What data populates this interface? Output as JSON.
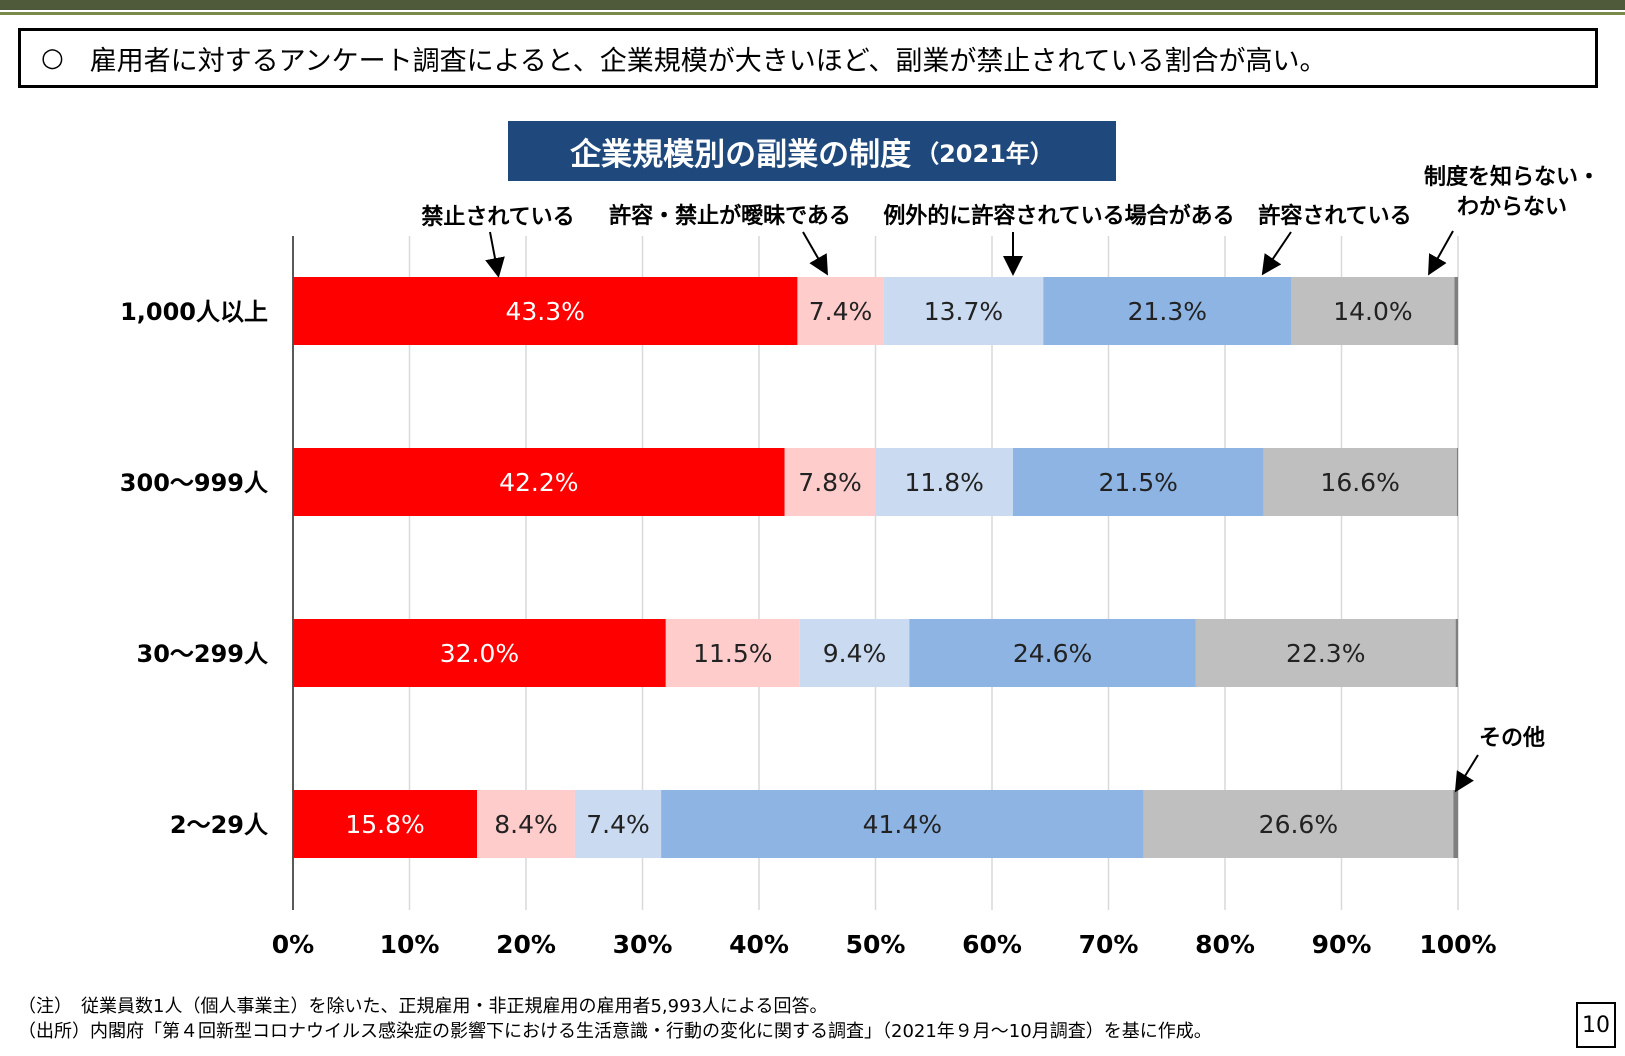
{
  "headline": {
    "marker": "○",
    "text": "雇用者に対するアンケート調査によると、企業規模が大きいほど、副業が禁止されている割合が高い。"
  },
  "chart_data": {
    "type": "bar",
    "orientation": "horizontal",
    "stacked": true,
    "title": "企業規模別の副業の制度",
    "title_suffix": "（2021年）",
    "categories": [
      "1,000人以上",
      "300～999人",
      "30～299人",
      "2～29人"
    ],
    "xlim": [
      0,
      100
    ],
    "xticks": [
      "0%",
      "10%",
      "20%",
      "30%",
      "40%",
      "50%",
      "60%",
      "70%",
      "80%",
      "90%",
      "100%"
    ],
    "grid": "vertical",
    "series": [
      {
        "name": "禁止されている",
        "color": "#ff0000",
        "label_color": "#ffffff",
        "values": [
          43.3,
          42.2,
          32.0,
          15.8
        ],
        "labels": [
          "43.3%",
          "42.2%",
          "32.0%",
          "15.8%"
        ]
      },
      {
        "name": "許容・禁止が曖昧である",
        "color": "#ffcccc",
        "label_color": "#222222",
        "values": [
          7.4,
          7.8,
          11.5,
          8.4
        ],
        "labels": [
          "7.4%",
          "7.8%",
          "11.5%",
          "8.4%"
        ]
      },
      {
        "name": "例外的に許容されている場合がある",
        "color": "#c9daf1",
        "label_color": "#222222",
        "values": [
          13.7,
          11.8,
          9.4,
          7.4
        ],
        "labels": [
          "13.7%",
          "11.8%",
          "9.4%",
          "7.4%"
        ]
      },
      {
        "name": "許容されている",
        "color": "#8eb4e3",
        "label_color": "#222222",
        "values": [
          21.3,
          21.5,
          24.6,
          41.4
        ],
        "labels": [
          "21.3%",
          "21.5%",
          "24.6%",
          "41.4%"
        ]
      },
      {
        "name": "制度を知らない・わからない",
        "color": "#bfbfbf",
        "label_color": "#222222",
        "values": [
          14.0,
          16.6,
          22.3,
          26.6
        ],
        "labels": [
          "14.0%",
          "16.6%",
          "22.3%",
          "26.6%"
        ]
      },
      {
        "name": "その他",
        "color": "#7f7f7f",
        "label_color": "#222222",
        "values": [
          0.3,
          0.1,
          0.2,
          0.4
        ],
        "labels": [
          "",
          "",
          "",
          ""
        ]
      }
    ],
    "callouts": [
      {
        "lines": [
          "禁止されている"
        ],
        "series": 0
      },
      {
        "lines": [
          "許容・禁止が曖昧である"
        ],
        "series": 1
      },
      {
        "lines": [
          "例外的に許容されている場合がある"
        ],
        "series": 2
      },
      {
        "lines": [
          "許容されている"
        ],
        "series": 3
      },
      {
        "lines": [
          "制度を知らない・",
          "わからない"
        ],
        "series": 4
      },
      {
        "lines": [
          "その他"
        ],
        "series": 5
      }
    ]
  },
  "footnotes": {
    "note": "（注）　従業員数1人（個人事業主）を除いた、正規雇用・非正規雇用の雇用者5,993人による回答。",
    "source": "（出所）内閣府「第４回新型コロナウイルス感染症の影響下における生活意識・行動の変化に関する調査」（2021年９月～10月調査）を基に作成。"
  },
  "page_number": "10"
}
